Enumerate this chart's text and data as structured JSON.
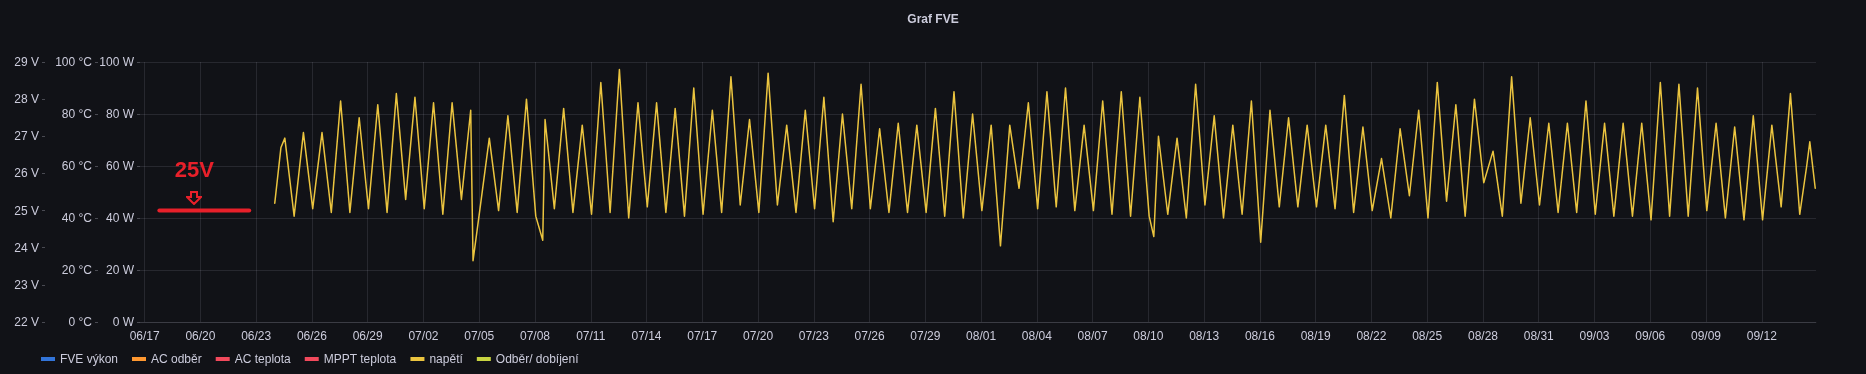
{
  "chart_data": {
    "type": "line",
    "title": "Graf FVE",
    "xlim": [
      "--06-16T18:00",
      "--09-14T22:00"
    ],
    "xticks": [
      {
        "value": "--06-17",
        "label": "06/17"
      },
      {
        "value": "--06-20",
        "label": "06/20"
      },
      {
        "value": "--06-23",
        "label": "06/23"
      },
      {
        "value": "--06-26",
        "label": "06/26"
      },
      {
        "value": "--06-29",
        "label": "06/29"
      },
      {
        "value": "--07-02",
        "label": "07/02"
      },
      {
        "value": "--07-05",
        "label": "07/05"
      },
      {
        "value": "--07-08",
        "label": "07/08"
      },
      {
        "value": "--07-11",
        "label": "07/11"
      },
      {
        "value": "--07-14",
        "label": "07/14"
      },
      {
        "value": "--07-17",
        "label": "07/17"
      },
      {
        "value": "--07-20",
        "label": "07/20"
      },
      {
        "value": "--07-23",
        "label": "07/23"
      },
      {
        "value": "--07-26",
        "label": "07/26"
      },
      {
        "value": "--07-29",
        "label": "07/29"
      },
      {
        "value": "--08-01",
        "label": "08/01"
      },
      {
        "value": "--08-04",
        "label": "08/04"
      },
      {
        "value": "--08-07",
        "label": "08/07"
      },
      {
        "value": "--08-10",
        "label": "08/10"
      },
      {
        "value": "--08-13",
        "label": "08/13"
      },
      {
        "value": "--08-16",
        "label": "08/16"
      },
      {
        "value": "--08-19",
        "label": "08/19"
      },
      {
        "value": "--08-22",
        "label": "08/22"
      },
      {
        "value": "--08-25",
        "label": "08/25"
      },
      {
        "value": "--08-28",
        "label": "08/28"
      },
      {
        "value": "--08-31",
        "label": "08/31"
      },
      {
        "value": "--09-03",
        "label": "09/03"
      },
      {
        "value": "--09-06",
        "label": "09/06"
      },
      {
        "value": "--09-09",
        "label": "09/09"
      },
      {
        "value": "--09-12",
        "label": "09/12"
      }
    ],
    "ylim": [
      0,
      100
    ],
    "yticks": [
      {
        "value": 0,
        "label": "0 W"
      },
      {
        "value": 20,
        "label": "20 W"
      },
      {
        "value": 40,
        "label": "40 W"
      },
      {
        "value": 60,
        "label": "60 W"
      },
      {
        "value": 80,
        "label": "80 W"
      },
      {
        "value": 100,
        "label": "100 W"
      }
    ],
    "y2lim": [
      0,
      100
    ],
    "y2ticks": [
      {
        "value": 0,
        "label": "0 °C"
      },
      {
        "value": 20,
        "label": "20 °C"
      },
      {
        "value": 40,
        "label": "40 °C"
      },
      {
        "value": 60,
        "label": "60 °C"
      },
      {
        "value": 80,
        "label": "80 °C"
      },
      {
        "value": 100,
        "label": "100 °C"
      }
    ],
    "y3lim": [
      22,
      29
    ],
    "y3ticks": [
      {
        "value": 22,
        "label": "22 V"
      },
      {
        "value": 23,
        "label": "23 V"
      },
      {
        "value": 24,
        "label": "24 V"
      },
      {
        "value": 25,
        "label": "25 V"
      },
      {
        "value": 26,
        "label": "26 V"
      },
      {
        "value": 27,
        "label": "27 V"
      },
      {
        "value": 28,
        "label": "28 V"
      },
      {
        "value": 29,
        "label": "29 V"
      }
    ],
    "grid": true,
    "legend": "bottom left",
    "marker": "none",
    "line_style": "solid",
    "annotations": [
      "25V"
    ],
    "series": [
      {
        "name": "FVE výkon",
        "color": "#3274d9"
      },
      {
        "name": "AC odběr",
        "color": "#ff9830"
      },
      {
        "name": "AC teplota",
        "color": "#f2495c",
        "axis": "y2"
      },
      {
        "name": "MPPT teplota",
        "color": "#f2495c",
        "axis": "y2"
      },
      {
        "name": "napětí",
        "color": "#ebc43f",
        "axis": "y3",
        "x": [
          "--06-24T00:00",
          "--06-24T08:00",
          "--06-24T13:00",
          "--06-25T01:00",
          "--06-25T13:00",
          "--06-26T01:00",
          "--06-26T13:00",
          "--06-27T01:00",
          "--06-27T13:00",
          "--06-28T01:00",
          "--06-28T13:00",
          "--06-29T01:00",
          "--06-29T13:00",
          "--06-30T01:00",
          "--06-30T13:00",
          "--07-01T01:00",
          "--07-01T13:00",
          "--07-02T01:00",
          "--07-02T13:00",
          "--07-03T01:00",
          "--07-03T13:00",
          "--07-04T01:00",
          "--07-04T13:00",
          "--07-04T16:00",
          "--07-05T01:00",
          "--07-05T13:00",
          "--07-06T01:00",
          "--07-06T13:00",
          "--07-07T01:00",
          "--07-07T13:00",
          "--07-08T01:00",
          "--07-08T10:00",
          "--07-08T13:00",
          "--07-09T01:00",
          "--07-09T13:00",
          "--07-10T01:00",
          "--07-10T13:00",
          "--07-11T01:00",
          "--07-11T13:00",
          "--07-12T01:00",
          "--07-12T13:00",
          "--07-13T01:00",
          "--07-13T13:00",
          "--07-14T01:00",
          "--07-14T13:00",
          "--07-15T01:00",
          "--07-15T13:00",
          "--07-16T01:00",
          "--07-16T13:00",
          "--07-17T01:00",
          "--07-17T13:00",
          "--07-18T01:00",
          "--07-18T13:00",
          "--07-19T01:00",
          "--07-19T13:00",
          "--07-20T01:00",
          "--07-20T13:00",
          "--07-21T01:00",
          "--07-21T13:00",
          "--07-22T01:00",
          "--07-22T13:00",
          "--07-23T01:00",
          "--07-23T13:00",
          "--07-24T01:00",
          "--07-24T13:00",
          "--07-25T01:00",
          "--07-25T13:00",
          "--07-26T01:00",
          "--07-26T13:00",
          "--07-27T01:00",
          "--07-27T13:00",
          "--07-28T01:00",
          "--07-28T13:00",
          "--07-29T01:00",
          "--07-29T13:00",
          "--07-30T01:00",
          "--07-30T13:00",
          "--07-31T01:00",
          "--07-31T13:00",
          "--08-01T01:00",
          "--08-01T13:00",
          "--08-02T01:00",
          "--08-02T13:00",
          "--08-03T01:00",
          "--08-03T13:00",
          "--08-04T01:00",
          "--08-04T13:00",
          "--08-05T01:00",
          "--08-05T13:00",
          "--08-06T01:00",
          "--08-06T13:00",
          "--08-07T01:00",
          "--08-07T13:00",
          "--08-08T01:00",
          "--08-08T13:00",
          "--08-09T01:00",
          "--08-09T13:00",
          "--08-10T01:00",
          "--08-10T07:00",
          "--08-10T13:00",
          "--08-11T01:00",
          "--08-11T13:00",
          "--08-12T01:00",
          "--08-12T13:00",
          "--08-13T01:00",
          "--08-13T13:00",
          "--08-14T01:00",
          "--08-14T13:00",
          "--08-15T01:00",
          "--08-15T13:00",
          "--08-16T01:00",
          "--08-16T13:00",
          "--08-17T01:00",
          "--08-17T13:00",
          "--08-18T01:00",
          "--08-18T13:00",
          "--08-19T01:00",
          "--08-19T13:00",
          "--08-20T01:00",
          "--08-20T13:00",
          "--08-21T01:00",
          "--08-21T13:00",
          "--08-22T01:00",
          "--08-22T13:00",
          "--08-23T01:00",
          "--08-23T13:00",
          "--08-24T01:00",
          "--08-24T13:00",
          "--08-25T01:00",
          "--08-25T13:00",
          "--08-26T01:00",
          "--08-26T13:00",
          "--08-27T01:00",
          "--08-27T13:00",
          "--08-28T01:00",
          "--08-28T13:00",
          "--08-29T01:00",
          "--08-29T13:00",
          "--08-30T01:00",
          "--08-30T13:00",
          "--08-31T01:00",
          "--08-31T13:00",
          "--09-01T01:00",
          "--09-01T13:00",
          "--09-02T01:00",
          "--09-02T13:00",
          "--09-03T01:00",
          "--09-03T13:00",
          "--09-04T01:00",
          "--09-04T13:00",
          "--09-05T01:00",
          "--09-05T13:00",
          "--09-06T01:00",
          "--09-06T13:00",
          "--09-07T01:00",
          "--09-07T13:00",
          "--09-08T01:00",
          "--09-08T13:00",
          "--09-09T01:00",
          "--09-09T13:00",
          "--09-10T01:00",
          "--09-10T13:00",
          "--09-11T01:00",
          "--09-11T13:00",
          "--09-12T01:00",
          "--09-12T13:00",
          "--09-13T01:00",
          "--09-13T13:00",
          "--09-14T01:00",
          "--09-14T10:00",
          "--09-14T14:00",
          "--09-14T21:00"
        ],
        "values": [
          25.2,
          26.7,
          26.95,
          24.85,
          27.1,
          25.05,
          27.1,
          24.95,
          27.95,
          24.95,
          27.5,
          25.05,
          27.85,
          24.95,
          28.15,
          25.3,
          28.05,
          25.05,
          27.9,
          24.9,
          27.9,
          25.3,
          27.7,
          23.65,
          25.05,
          26.95,
          25.0,
          27.55,
          24.95,
          28.0,
          24.85,
          24.2,
          27.45,
          25.05,
          27.75,
          24.95,
          27.3,
          24.9,
          28.45,
          24.95,
          28.8,
          24.8,
          27.9,
          25.1,
          27.9,
          24.95,
          27.75,
          24.85,
          28.3,
          24.9,
          27.7,
          24.95,
          28.6,
          25.15,
          27.45,
          24.95,
          28.7,
          25.15,
          27.3,
          24.95,
          27.7,
          25.05,
          28.05,
          24.7,
          27.6,
          25.05,
          28.4,
          25.05,
          27.2,
          24.95,
          27.35,
          24.95,
          27.3,
          24.95,
          27.75,
          24.85,
          28.2,
          24.8,
          27.6,
          25.0,
          27.3,
          24.05,
          27.3,
          25.6,
          27.9,
          25.05,
          28.2,
          25.1,
          28.3,
          25.0,
          27.3,
          25.0,
          27.95,
          24.9,
          28.2,
          24.85,
          28.05,
          24.85,
          24.3,
          27.0,
          24.9,
          26.95,
          24.8,
          28.4,
          25.15,
          27.55,
          24.8,
          27.3,
          24.9,
          27.95,
          24.15,
          27.7,
          25.1,
          27.5,
          25.1,
          27.3,
          25.1,
          27.3,
          25.05,
          28.1,
          24.95,
          27.25,
          25.0,
          26.4,
          24.8,
          27.2,
          25.4,
          27.7,
          24.8,
          28.45,
          25.25,
          27.85,
          24.85,
          28.0,
          25.75,
          26.6,
          24.85,
          28.6,
          25.2,
          27.5,
          25.15,
          27.35,
          24.95,
          27.35,
          24.95,
          27.95,
          24.9,
          27.35,
          24.85,
          27.35,
          24.85,
          27.35,
          24.75,
          28.45,
          24.85,
          28.4,
          24.85,
          28.3,
          25.0,
          27.35,
          24.8,
          27.25,
          24.75,
          27.55,
          24.75,
          27.3,
          25.1,
          28.15,
          24.9,
          26.2,
          26.85,
          25.6
        ]
      },
      {
        "name": "Odběr/ dobíjení",
        "color": "#c8d441"
      },
      {
        "type": "line",
        "color": "#e8202a",
        "axis": "y3",
        "x": [
          "--06-17T19:00",
          "--06-22T15:00"
        ],
        "values": [
          25,
          25
        ]
      }
    ]
  }
}
